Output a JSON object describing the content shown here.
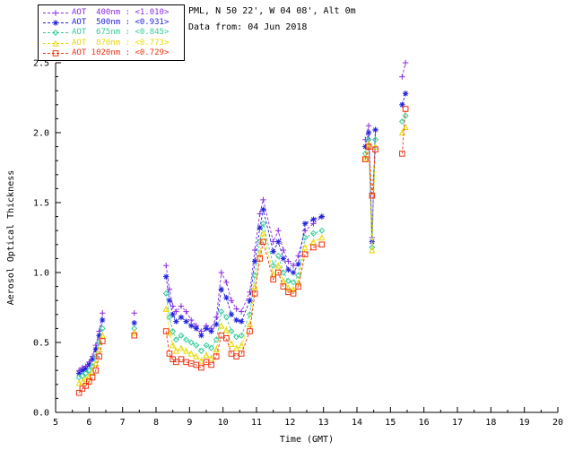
{
  "header": {
    "station": "PML, N 50 22', W 04 08', Alt 0m",
    "date_line": "Data from: 04 Jun 2018"
  },
  "legend": {
    "items": [
      {
        "label": "AOT  400nm : <1.010>",
        "color": "#8a2be2",
        "marker": "plus"
      },
      {
        "label": "AOT  500nm : <0.931>",
        "color": "#2222dd",
        "marker": "asterisk"
      },
      {
        "label": "AOT  675nm : <0.845>",
        "color": "#33cc99",
        "marker": "diamond"
      },
      {
        "label": "AOT  870nm : <0.773>",
        "color": "#e8d800",
        "marker": "triangle"
      },
      {
        "label": "AOT 1020nm : <0.729>",
        "color": "#ee3311",
        "marker": "square"
      }
    ]
  },
  "chart_data": {
    "type": "line",
    "title": "",
    "xlabel": "Time (GMT)",
    "ylabel": "Aerosol Optical Thickness",
    "xlim": [
      5,
      20
    ],
    "ylim": [
      0.0,
      2.5
    ],
    "xticks": [
      5,
      6,
      7,
      8,
      9,
      10,
      11,
      12,
      13,
      14,
      15,
      16,
      17,
      18,
      19,
      20
    ],
    "yticks": [
      0.0,
      0.5,
      1.0,
      1.5,
      2.0,
      2.5
    ],
    "grid": false,
    "legend_position": "top-left",
    "line_style": "dashed",
    "background": "#ffffff",
    "x": [
      5.7,
      5.8,
      5.9,
      6.0,
      6.1,
      6.2,
      6.3,
      6.4,
      7.35,
      8.3,
      8.4,
      8.5,
      8.6,
      8.75,
      8.9,
      9.05,
      9.2,
      9.35,
      9.5,
      9.65,
      9.8,
      9.95,
      10.1,
      10.25,
      10.4,
      10.55,
      10.8,
      10.95,
      11.1,
      11.2,
      11.5,
      11.65,
      11.8,
      11.95,
      12.1,
      12.25,
      12.45,
      12.7,
      12.95,
      14.25,
      14.35,
      14.45,
      14.55,
      15.35,
      15.45
    ],
    "series": [
      {
        "name": "AOT 400nm",
        "mean": 1.01,
        "color": "#8a2be2",
        "marker": "plus",
        "values": [
          0.3,
          0.32,
          0.33,
          0.36,
          0.4,
          0.48,
          0.58,
          0.71,
          0.71,
          1.05,
          0.88,
          0.76,
          0.72,
          0.76,
          0.72,
          0.66,
          0.62,
          0.58,
          0.62,
          0.6,
          0.68,
          1.0,
          0.93,
          0.8,
          0.74,
          0.72,
          0.86,
          1.16,
          1.42,
          1.52,
          1.22,
          1.3,
          1.16,
          1.08,
          1.05,
          1.12,
          1.3,
          1.35,
          1.4,
          1.95,
          2.05,
          1.25,
          2.02,
          2.4,
          2.5
        ]
      },
      {
        "name": "AOT 500nm",
        "mean": 0.931,
        "color": "#2222dd",
        "marker": "asterisk",
        "values": [
          0.28,
          0.3,
          0.31,
          0.34,
          0.38,
          0.45,
          0.55,
          0.66,
          0.64,
          0.97,
          0.8,
          0.7,
          0.65,
          0.68,
          0.65,
          0.62,
          0.6,
          0.55,
          0.6,
          0.58,
          0.63,
          0.88,
          0.82,
          0.7,
          0.66,
          0.65,
          0.8,
          1.08,
          1.32,
          1.45,
          1.15,
          1.22,
          1.1,
          1.02,
          1.0,
          1.06,
          1.35,
          1.38,
          1.4,
          1.9,
          2.0,
          1.22,
          2.02,
          2.2,
          2.28
        ]
      },
      {
        "name": "AOT 675nm",
        "mean": 0.845,
        "color": "#33cc99",
        "marker": "diamond",
        "values": [
          0.25,
          0.26,
          0.28,
          0.3,
          0.33,
          0.4,
          0.5,
          0.6,
          0.6,
          0.85,
          0.68,
          0.58,
          0.52,
          0.55,
          0.52,
          0.5,
          0.48,
          0.44,
          0.48,
          0.46,
          0.52,
          0.72,
          0.68,
          0.58,
          0.54,
          0.55,
          0.7,
          0.98,
          1.22,
          1.35,
          1.05,
          1.12,
          1.0,
          0.94,
          0.93,
          0.98,
          1.25,
          1.28,
          1.3,
          1.85,
          1.95,
          1.18,
          1.95,
          2.08,
          2.12
        ]
      },
      {
        "name": "AOT 870nm",
        "mean": 0.773,
        "color": "#e8d800",
        "marker": "triangle",
        "values": [
          0.21,
          0.22,
          0.24,
          0.26,
          0.29,
          0.35,
          0.45,
          0.55,
          0.57,
          0.74,
          0.57,
          0.48,
          0.44,
          0.46,
          0.44,
          0.42,
          0.4,
          0.37,
          0.41,
          0.39,
          0.45,
          0.62,
          0.59,
          0.49,
          0.46,
          0.48,
          0.63,
          0.9,
          1.14,
          1.28,
          0.99,
          1.05,
          0.94,
          0.89,
          0.88,
          0.93,
          1.18,
          1.22,
          1.25,
          1.82,
          1.92,
          1.16,
          1.9,
          2.0,
          2.04
        ]
      },
      {
        "name": "AOT 1020nm",
        "mean": 0.729,
        "color": "#ee3311",
        "marker": "square",
        "values": [
          0.14,
          0.17,
          0.19,
          0.22,
          0.25,
          0.3,
          0.4,
          0.51,
          0.55,
          0.58,
          0.42,
          0.38,
          0.36,
          0.38,
          0.36,
          0.35,
          0.34,
          0.32,
          0.36,
          0.34,
          0.4,
          0.55,
          0.53,
          0.42,
          0.4,
          0.42,
          0.58,
          0.85,
          1.1,
          1.22,
          0.95,
          1.0,
          0.9,
          0.86,
          0.85,
          0.9,
          1.13,
          1.18,
          1.2,
          1.81,
          1.9,
          1.55,
          1.88,
          1.85,
          2.17
        ]
      }
    ]
  }
}
